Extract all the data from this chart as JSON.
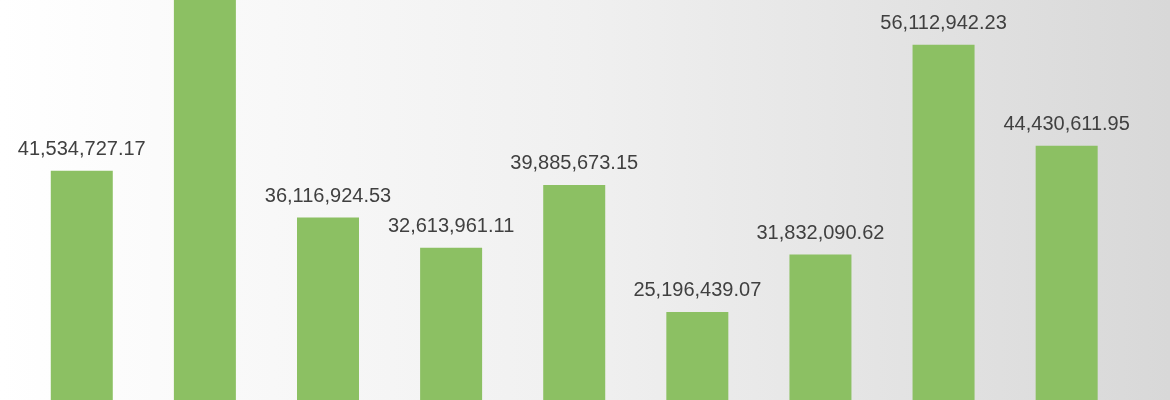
{
  "chart_data": {
    "type": "bar",
    "categories": [
      null,
      null,
      null,
      null,
      null,
      null,
      null,
      null,
      null
    ],
    "values": [
      41534727.17,
      61300000,
      36116924.53,
      32613961.11,
      39885673.15,
      25196439.07,
      31832090.62,
      56112942.23,
      44430611.95
    ],
    "value_labels": [
      "41,534,727.17",
      null,
      "36,116,924.53",
      "32,613,961.11",
      "39,885,673.15",
      "25,196,439.07",
      "31,832,090.62",
      "56,112,942.23",
      "44,430,611.95"
    ],
    "color": "#8cc063",
    "ylim": [
      15000000,
      61300000
    ],
    "tick_labels": false
  }
}
